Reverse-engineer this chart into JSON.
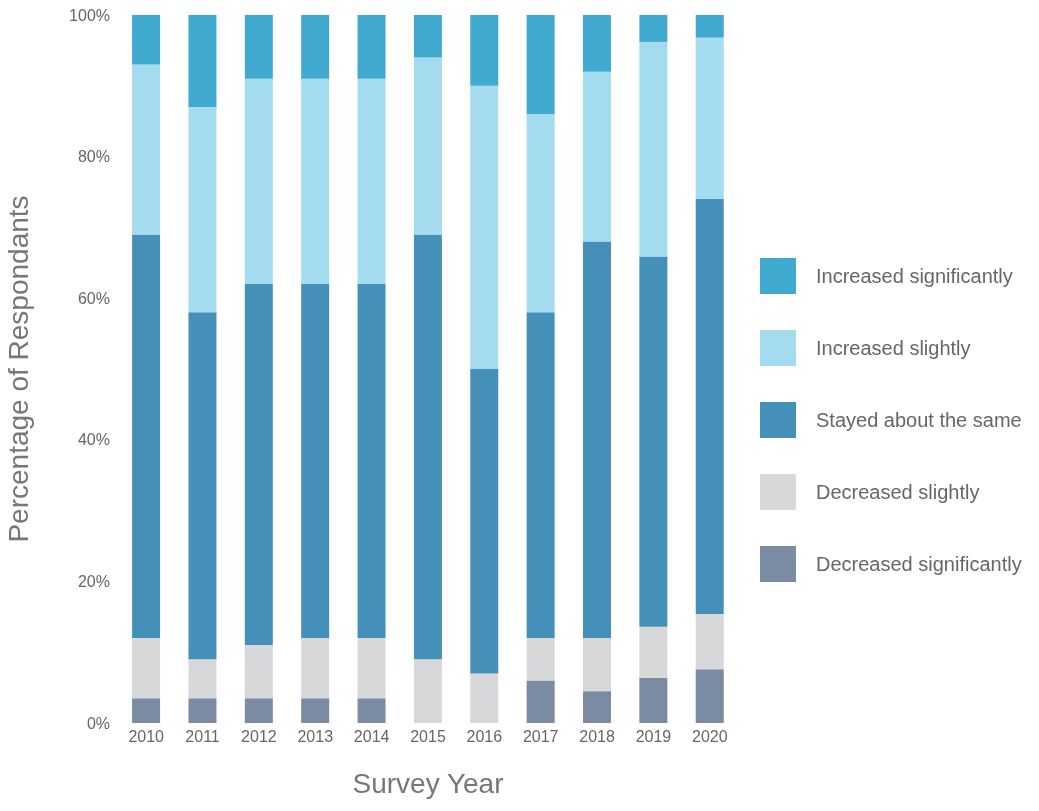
{
  "chart_data": {
    "type": "bar",
    "stacked": true,
    "xlabel": "Survey Year",
    "ylabel": "Percentage of Respondants",
    "categories": [
      "2010",
      "2011",
      "2012",
      "2013",
      "2014",
      "2015",
      "2016",
      "2017",
      "2018",
      "2019",
      "2020"
    ],
    "series": [
      {
        "name": "Decreased significantly",
        "color": "#7a8ba3",
        "values": [
          3.5,
          3.5,
          3.5,
          3.5,
          3.5,
          0,
          0,
          6,
          4.5,
          6.4,
          7.6
        ]
      },
      {
        "name": "Decreased slightly",
        "color": "#d7d8da",
        "values": [
          8.5,
          5.5,
          7.5,
          8.5,
          8.5,
          9,
          7,
          6,
          7.5,
          7.2,
          7.8
        ]
      },
      {
        "name": "Stayed about the same",
        "color": "#4490b9",
        "values": [
          57,
          49,
          51,
          50,
          50,
          60,
          43,
          46,
          56,
          52.3,
          58.6
        ]
      },
      {
        "name": "Increased slightly",
        "color": "#a5dbef",
        "values": [
          24,
          29,
          29,
          29,
          29,
          25,
          40,
          28,
          24,
          30.3,
          22.8
        ]
      },
      {
        "name": "Increased significantly",
        "color": "#3fa9cf",
        "values": [
          7,
          13,
          9,
          9,
          9,
          6,
          10,
          14,
          8,
          3.8,
          3.2
        ]
      }
    ],
    "ylim": [
      0,
      100
    ],
    "yticks": [
      {
        "value": 0,
        "label": "0%"
      },
      {
        "value": 20,
        "label": "20%"
      },
      {
        "value": 40,
        "label": "40%"
      },
      {
        "value": 60,
        "label": "60%"
      },
      {
        "value": 80,
        "label": "80%"
      },
      {
        "value": 100,
        "label": "100%"
      }
    ],
    "grid": false,
    "legend": "right"
  }
}
